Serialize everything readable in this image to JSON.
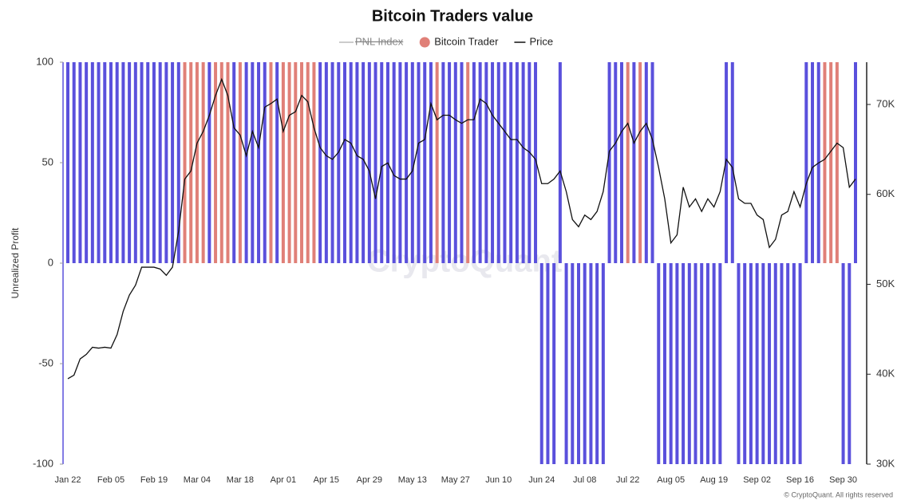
{
  "chart_data": {
    "type": "bar_line",
    "title": "Bitcoin Traders value",
    "y_label": "Unrealized Profit",
    "watermark": "CryptoQuant",
    "credit": "© CryptoQuant. All rights reserved",
    "hidden_series": [
      {
        "name": "PNL Index",
        "color": "#999999"
      }
    ],
    "categories": [
      "Jan 22",
      null,
      null,
      null,
      null,
      null,
      null,
      "Feb 05",
      null,
      null,
      null,
      null,
      null,
      null,
      "Feb 19",
      null,
      null,
      null,
      null,
      null,
      null,
      "Mar 04",
      null,
      null,
      null,
      null,
      null,
      null,
      "Mar 18",
      null,
      null,
      null,
      null,
      null,
      null,
      "Apr 01",
      null,
      null,
      null,
      null,
      null,
      null,
      "Apr 15",
      null,
      null,
      null,
      null,
      null,
      null,
      "Apr 29",
      null,
      null,
      null,
      null,
      null,
      null,
      "May 13",
      null,
      null,
      null,
      null,
      null,
      null,
      "May 27",
      null,
      null,
      null,
      null,
      null,
      null,
      "Jun 10",
      null,
      null,
      null,
      null,
      null,
      null,
      "Jun 24",
      null,
      null,
      null,
      null,
      null,
      null,
      "Jul 08",
      null,
      null,
      null,
      null,
      null,
      null,
      "Jul 22",
      null,
      null,
      null,
      null,
      null,
      null,
      "Aug 05",
      null,
      null,
      null,
      null,
      null,
      null,
      "Aug 19",
      null,
      null,
      null,
      null,
      null,
      null,
      "Sep 02",
      null,
      null,
      null,
      null,
      null,
      null,
      "Sep 16",
      null,
      null,
      null,
      null,
      null,
      null,
      "Sep 30",
      null,
      null
    ],
    "series": [
      {
        "name": "Bitcoin Trader",
        "color": "#e08078",
        "type": "bar",
        "values": [
          100,
          100,
          100,
          100,
          100,
          100,
          100,
          100,
          100,
          100,
          100,
          100,
          100,
          100,
          100,
          100,
          100,
          100,
          100,
          100,
          100,
          100,
          100,
          100,
          100,
          100,
          100,
          100,
          100,
          100,
          100,
          100,
          100,
          100,
          100,
          100,
          100,
          100,
          100,
          100,
          100,
          100,
          100,
          100,
          100,
          100,
          100,
          100,
          100,
          100,
          100,
          100,
          100,
          100,
          100,
          100,
          100,
          100,
          100,
          100,
          100,
          100,
          100,
          100,
          100,
          100,
          100,
          100,
          100,
          100,
          100,
          100,
          100,
          100,
          100,
          100,
          100,
          -100,
          -100,
          -100,
          100,
          -100,
          -100,
          -100,
          -100,
          -100,
          -100,
          -100,
          100,
          100,
          100,
          100,
          100,
          100,
          100,
          100,
          -100,
          -100,
          -100,
          -100,
          -100,
          -100,
          -100,
          -100,
          -100,
          -100,
          -100,
          100,
          100,
          -100,
          -100,
          -100,
          -100,
          -100,
          -100,
          -100,
          -100,
          -100,
          -100,
          -100,
          100,
          100,
          100,
          100,
          100,
          100,
          -100,
          -100,
          100
        ],
        "bar_colors": [
          "#5a50dc",
          "#5a50dc",
          "#5a50dc",
          "#5a50dc",
          "#5a50dc",
          "#5a50dc",
          "#5a50dc",
          "#5a50dc",
          "#5a50dc",
          "#5a50dc",
          "#5a50dc",
          "#5a50dc",
          "#5a50dc",
          "#5a50dc",
          "#5a50dc",
          "#5a50dc",
          "#5a50dc",
          "#5a50dc",
          "#5a50dc",
          "#e08078",
          "#e08078",
          "#e08078",
          "#e08078",
          "#5a50dc",
          "#e08078",
          "#e08078",
          "#e08078",
          "#5a50dc",
          "#e08078",
          "#5a50dc",
          "#5a50dc",
          "#5a50dc",
          "#5a50dc",
          "#e08078",
          "#5a50dc",
          "#e08078",
          "#e08078",
          "#e08078",
          "#e08078",
          "#e08078",
          "#e08078",
          "#5a50dc",
          "#5a50dc",
          "#5a50dc",
          "#5a50dc",
          "#5a50dc",
          "#5a50dc",
          "#5a50dc",
          "#5a50dc",
          "#5a50dc",
          "#5a50dc",
          "#5a50dc",
          "#5a50dc",
          "#5a50dc",
          "#5a50dc",
          "#5a50dc",
          "#5a50dc",
          "#5a50dc",
          "#5a50dc",
          "#5a50dc",
          "#e08078",
          "#5a50dc",
          "#5a50dc",
          "#5a50dc",
          "#5a50dc",
          "#e08078",
          "#5a50dc",
          "#5a50dc",
          "#5a50dc",
          "#5a50dc",
          "#5a50dc",
          "#5a50dc",
          "#5a50dc",
          "#5a50dc",
          "#5a50dc",
          "#5a50dc",
          "#5a50dc",
          "#5a50dc",
          "#5a50dc",
          "#5a50dc",
          "#5a50dc",
          "#5a50dc",
          "#5a50dc",
          "#5a50dc",
          "#5a50dc",
          "#5a50dc",
          "#5a50dc",
          "#5a50dc",
          "#5a50dc",
          "#5a50dc",
          "#5a50dc",
          "#e08078",
          "#5a50dc",
          "#e08078",
          "#5a50dc",
          "#5a50dc",
          "#5a50dc",
          "#5a50dc",
          "#5a50dc",
          "#5a50dc",
          "#5a50dc",
          "#5a50dc",
          "#5a50dc",
          "#5a50dc",
          "#5a50dc",
          "#5a50dc",
          "#5a50dc",
          "#5a50dc",
          "#5a50dc",
          "#5a50dc",
          "#5a50dc",
          "#5a50dc",
          "#5a50dc",
          "#5a50dc",
          "#5a50dc",
          "#5a50dc",
          "#5a50dc",
          "#5a50dc",
          "#5a50dc",
          "#5a50dc",
          "#5a50dc",
          "#5a50dc",
          "#5a50dc",
          "#e08078",
          "#e08078",
          "#e08078",
          "#5a50dc",
          "#5a50dc",
          "#5a50dc"
        ]
      },
      {
        "name": "Price",
        "color": "#111111",
        "type": "line",
        "axis": "y2",
        "values": [
          39500,
          39900,
          41700,
          42200,
          43000,
          42900,
          43000,
          42900,
          44400,
          47000,
          48800,
          49900,
          51900,
          51900,
          51900,
          51700,
          51000,
          51900,
          55900,
          61700,
          62600,
          65700,
          67000,
          68800,
          71000,
          72800,
          71000,
          67400,
          66600,
          64300,
          67000,
          65200,
          69700,
          70100,
          70600,
          67000,
          68800,
          69200,
          71000,
          70300,
          67400,
          65200,
          64300,
          63900,
          64700,
          66100,
          65700,
          64300,
          63900,
          62600,
          59500,
          63100,
          63500,
          62100,
          61700,
          61700,
          62600,
          65700,
          66100,
          70100,
          68300,
          68800,
          68800,
          68300,
          67900,
          68300,
          68300,
          70600,
          70100,
          68800,
          67900,
          67000,
          66100,
          66100,
          65200,
          64700,
          63900,
          61200,
          61200,
          61700,
          62600,
          60300,
          57200,
          56400,
          57700,
          57200,
          58100,
          60300,
          64800,
          65700,
          67000,
          67900,
          65700,
          67000,
          67900,
          66100,
          63000,
          59500,
          54600,
          55500,
          60800,
          58600,
          59500,
          58100,
          59500,
          58600,
          60300,
          63900,
          63000,
          59500,
          59000,
          59000,
          57700,
          57200,
          54100,
          55000,
          57700,
          58100,
          60300,
          58600,
          61200,
          63000,
          63500,
          63900,
          64800,
          65700,
          65200,
          60800,
          61700
        ]
      }
    ],
    "ylim": [
      -100,
      100
    ],
    "yticks": [
      -100,
      -50,
      0,
      50,
      100
    ],
    "y2lim": [
      30000,
      74700
    ],
    "y2ticks": [
      {
        "value": 30000,
        "label": "30K"
      },
      {
        "value": 40000,
        "label": "40K"
      },
      {
        "value": 50000,
        "label": "50K"
      },
      {
        "value": 60000,
        "label": "60K"
      },
      {
        "value": 70000,
        "label": "70K"
      }
    ],
    "grid": false,
    "legend": "top"
  }
}
